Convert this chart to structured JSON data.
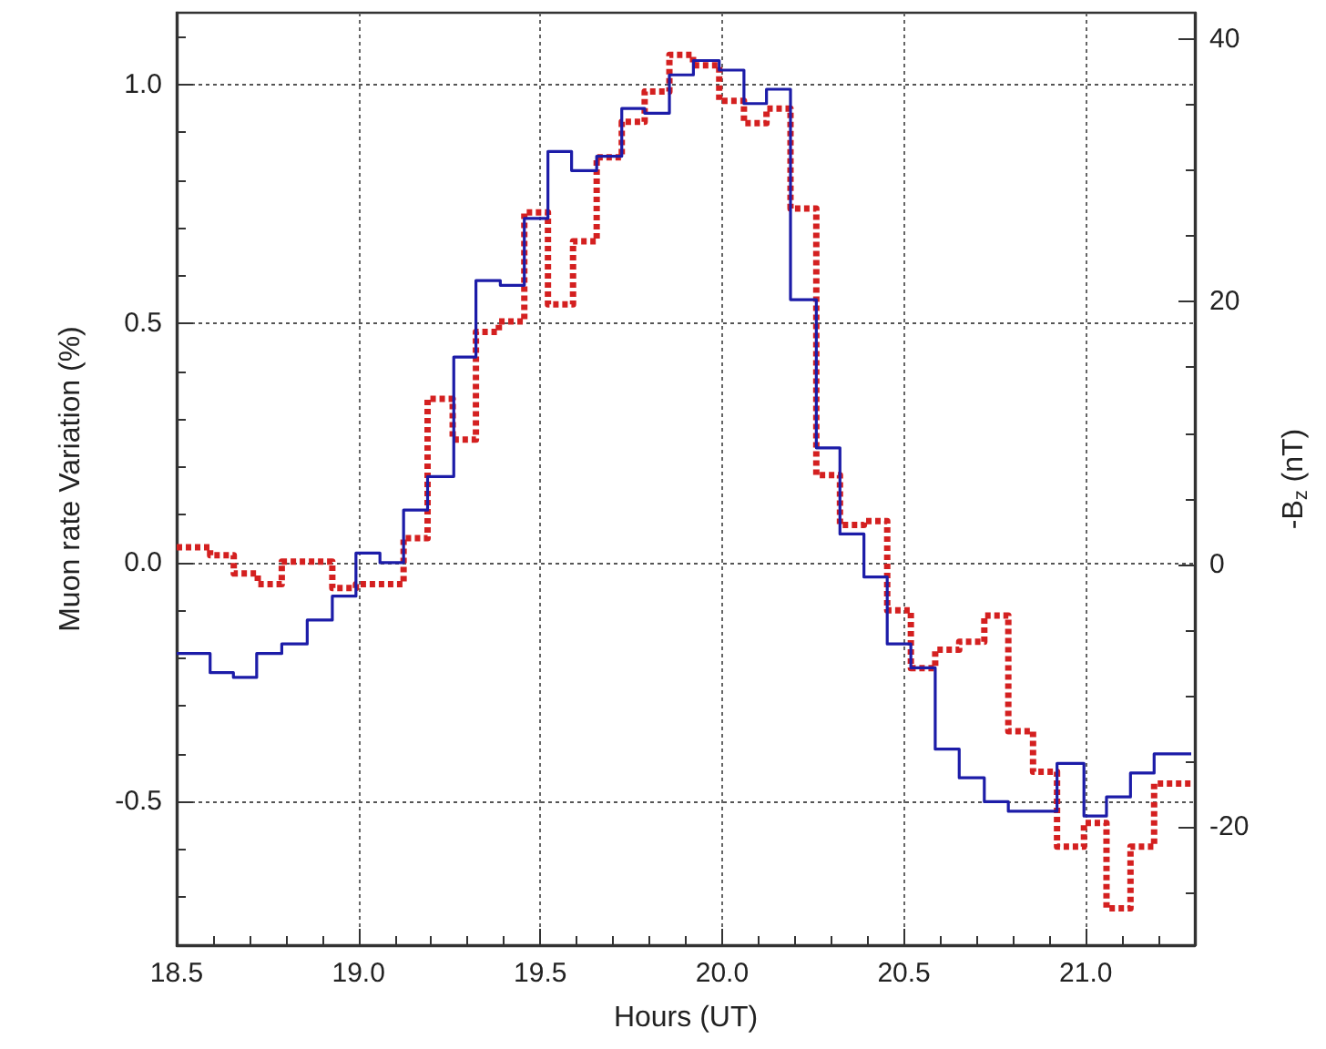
{
  "chart_data": {
    "type": "step",
    "xlabel": "Hours (UT)",
    "ylabel": "Muon rate Variation (%)",
    "y2label": "-B$_{z}$ (nT)",
    "xlim": [
      18.5,
      21.3
    ],
    "xticks": [
      18.5,
      {
        "value": 18.6,
        "label": null
      },
      {
        "value": 18.7,
        "label": null
      },
      {
        "value": 18.8,
        "label": null
      },
      {
        "value": 18.9,
        "label": null
      },
      {
        "value": 19,
        "label": "19.0"
      },
      {
        "value": 19.1,
        "label": null
      },
      {
        "value": 19.2,
        "label": null
      },
      {
        "value": 19.3,
        "label": null
      },
      {
        "value": 19.4,
        "label": null
      },
      19.5,
      {
        "value": 19.6,
        "label": null
      },
      {
        "value": 19.7,
        "label": null
      },
      {
        "value": 19.8,
        "label": null
      },
      {
        "value": 19.9,
        "label": null
      },
      {
        "value": 20,
        "label": "20.0"
      },
      {
        "value": 20.1,
        "label": null
      },
      {
        "value": 20.2,
        "label": null
      },
      {
        "value": 20.3,
        "label": null
      },
      {
        "value": 20.4,
        "label": null
      },
      20.5,
      {
        "value": 20.6,
        "label": null
      },
      {
        "value": 20.7,
        "label": null
      },
      {
        "value": 20.8,
        "label": null
      },
      {
        "value": 20.9,
        "label": null
      },
      {
        "value": 21,
        "label": "21.0"
      },
      {
        "value": 21.1,
        "label": null
      },
      {
        "value": 21.2,
        "label": null
      }
    ],
    "ylim": [
      -0.8,
      1.15
    ],
    "yticks": [
      {
        "value": -0.7,
        "label": null
      },
      {
        "value": -0.6,
        "label": null
      },
      -0.5,
      {
        "value": -0.4,
        "label": null
      },
      {
        "value": -0.3,
        "label": null
      },
      {
        "value": -0.2,
        "label": null
      },
      {
        "value": -0.1,
        "label": null
      },
      {
        "value": 0,
        "label": "0.0"
      },
      {
        "value": 0.1,
        "label": null
      },
      {
        "value": 0.2,
        "label": null
      },
      {
        "value": 0.3,
        "label": null
      },
      {
        "value": 0.4,
        "label": null
      },
      0.5,
      {
        "value": 0.6,
        "label": null
      },
      {
        "value": 0.7,
        "label": null
      },
      {
        "value": 0.8,
        "label": null
      },
      {
        "value": 0.9,
        "label": null
      },
      {
        "value": 1,
        "label": "1.0"
      },
      {
        "value": 1.1,
        "label": null
      }
    ],
    "y2lim": [
      -29,
      42
    ],
    "y2ticks": [
      {
        "value": -25,
        "label": null
      },
      -20,
      {
        "value": -15,
        "label": null
      },
      {
        "value": -10,
        "label": null
      },
      {
        "value": -5,
        "label": null
      },
      0,
      {
        "value": 5,
        "label": null
      },
      {
        "value": 10,
        "label": null
      },
      {
        "value": 15,
        "label": null
      },
      20,
      {
        "value": 25,
        "label": null
      },
      {
        "value": 30,
        "label": null
      },
      {
        "value": 35,
        "label": null
      },
      40
    ],
    "grid": true,
    "marker": "none",
    "series": [
      {
        "color": "#1c1ca8",
        "line_style": "solid",
        "x": [
          18.5,
          18.592,
          18.656,
          18.72,
          18.789,
          18.859,
          18.928,
          18.993,
          19.059,
          19.124,
          19.19,
          19.262,
          19.323,
          19.39,
          19.456,
          19.521,
          19.586,
          19.655,
          19.724,
          19.787,
          19.855,
          19.921,
          19.992,
          20.06,
          20.122,
          20.188,
          20.259,
          20.324,
          20.39,
          20.454,
          20.519,
          20.586,
          20.652,
          20.721,
          20.787,
          20.855,
          20.921,
          20.995,
          21.057,
          21.123,
          21.188,
          21.29
        ],
        "values": [
          -0.19,
          -0.23,
          -0.24,
          -0.19,
          -0.17,
          -0.12,
          -0.07,
          0.02,
          0.0,
          0.11,
          0.18,
          0.43,
          0.59,
          0.58,
          0.72,
          0.86,
          0.82,
          0.85,
          0.95,
          0.94,
          1.02,
          1.05,
          1.03,
          0.96,
          0.99,
          0.55,
          0.24,
          0.06,
          -0.03,
          -0.17,
          -0.22,
          -0.39,
          -0.45,
          -0.5,
          -0.52,
          -0.52,
          -0.42,
          -0.53,
          -0.49,
          -0.44,
          -0.4,
          -0.4
        ]
      },
      {
        "color": "#d42020",
        "line_style": "dotted",
        "axis": "y2",
        "x": [
          18.5,
          18.592,
          18.657,
          18.723,
          18.789,
          18.928,
          18.993,
          19.124,
          19.19,
          19.259,
          19.323,
          19.386,
          19.456,
          19.521,
          19.59,
          19.655,
          19.724,
          19.787,
          19.855,
          19.92,
          19.992,
          20.06,
          20.122,
          20.188,
          20.259,
          20.324,
          20.39,
          20.454,
          20.519,
          20.586,
          20.652,
          20.721,
          20.787,
          20.855,
          20.921,
          20.995,
          21.057,
          21.123,
          21.188,
          21.29
        ],
        "values": [
          1.3,
          0.7,
          -0.7,
          -1.5,
          0.2,
          -1.8,
          -1.5,
          2.0,
          12.6,
          9.5,
          17.7,
          18.5,
          26.8,
          19.8,
          24.6,
          31.0,
          33.7,
          36.0,
          38.8,
          38.0,
          35.3,
          33.6,
          34.7,
          27.1,
          6.8,
          3.0,
          3.3,
          -3.5,
          -7.9,
          -6.5,
          -5.9,
          -3.9,
          -12.7,
          -15.8,
          -21.5,
          -19.7,
          -26.2,
          -21.5,
          -16.7,
          -16.7
        ]
      }
    ]
  }
}
